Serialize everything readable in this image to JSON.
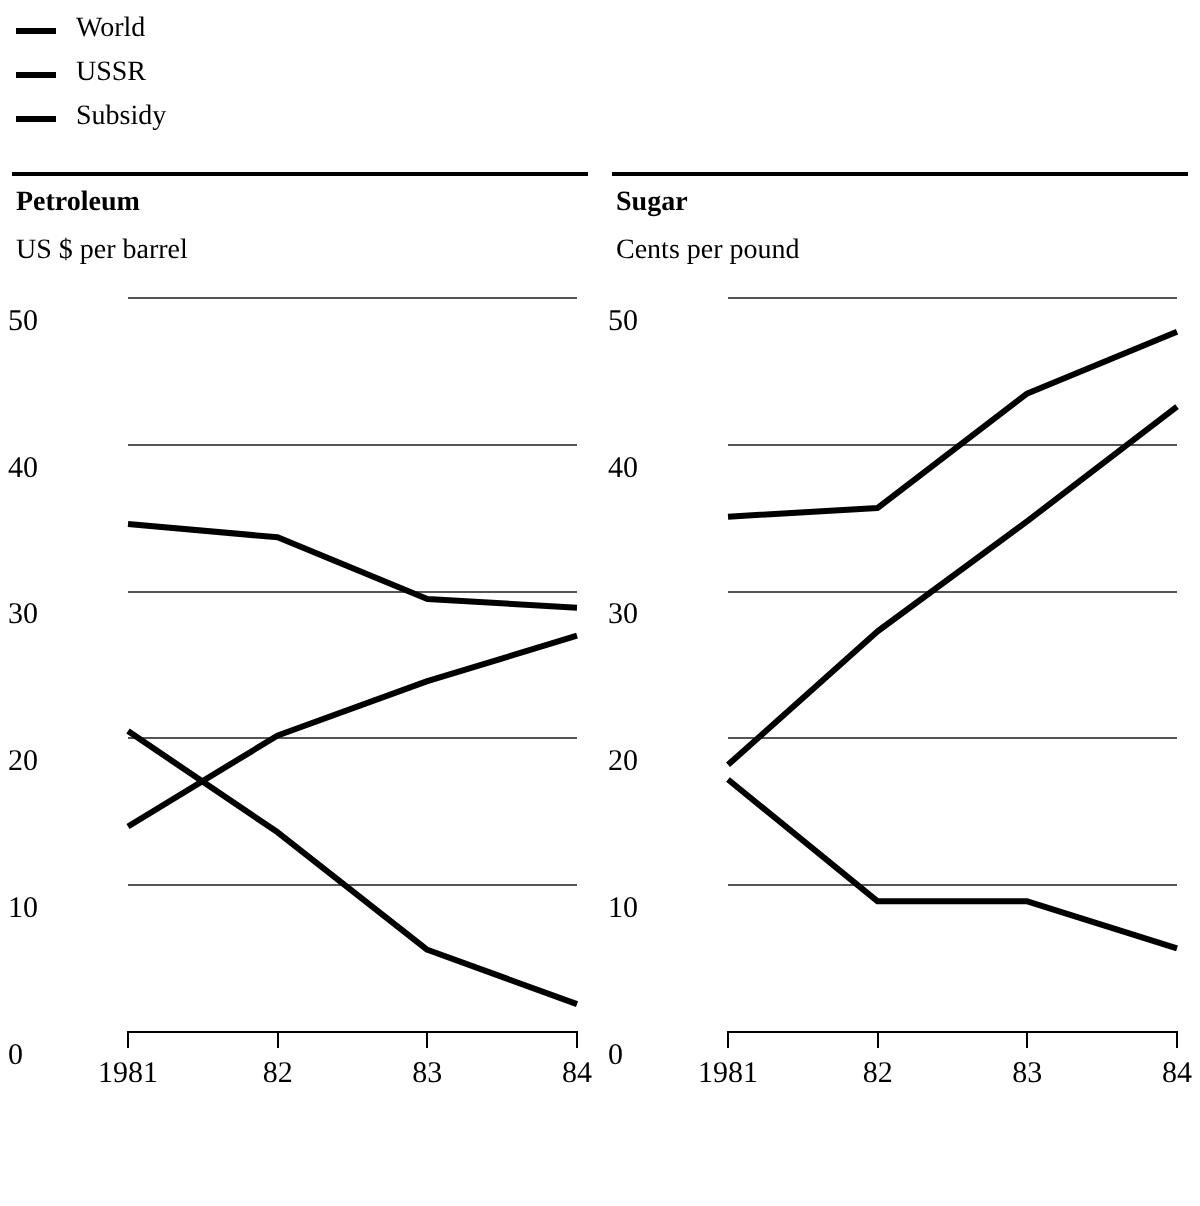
{
  "chart_data": [
    {
      "type": "line",
      "title": "Petroleum",
      "ylabel": "US $ per barrel",
      "categories": [
        "1981",
        "82",
        "83",
        "84"
      ],
      "series": [
        {
          "name": "World",
          "color": "#000000",
          "values": [
            34.6,
            33.7,
            29.5,
            28.9
          ]
        },
        {
          "name": "USSR",
          "color": "#000000",
          "values": [
            14,
            20.2,
            23.9,
            27
          ]
        },
        {
          "name": "Subsidy",
          "color": "#000000",
          "values": [
            20.5,
            13.6,
            5.6,
            1.9
          ]
        }
      ],
      "ylim": [
        0,
        50
      ],
      "yticks": [
        0,
        10,
        20,
        30,
        40,
        50
      ],
      "grid": "y",
      "legend": "top left",
      "marker": "none"
    },
    {
      "type": "line",
      "title": "Sugar",
      "ylabel": "Cents per pound",
      "categories": [
        "1981",
        "82",
        "83",
        "84"
      ],
      "series": [
        {
          "color": "#000000",
          "values": [
            18.2,
            27.3,
            34.8,
            42.6
          ]
        },
        {
          "color": "#000000",
          "values": [
            35.1,
            35.7,
            43.5,
            47.7
          ]
        },
        {
          "color": "#000000",
          "values": [
            17.2,
            8.9,
            8.9,
            5.7
          ]
        }
      ],
      "ylim": [
        0,
        50
      ],
      "yticks": [
        0,
        10,
        20,
        30,
        40,
        50
      ],
      "grid": "y",
      "legend": false,
      "marker": "none"
    }
  ]
}
